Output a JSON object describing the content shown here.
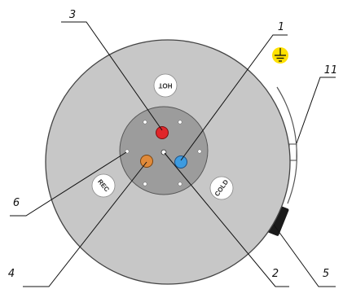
{
  "diagram": {
    "port_labels": {
      "hot": "HOT",
      "cold": "COLD",
      "rec": "REC"
    },
    "callouts": [
      {
        "id": "1",
        "text": "1",
        "refers_to": "cold-water-port (blue)"
      },
      {
        "id": "2",
        "text": "2",
        "refers_to": "center-pin"
      },
      {
        "id": "3",
        "text": "3",
        "refers_to": "hot-water-port (red)"
      },
      {
        "id": "4",
        "text": "4",
        "refers_to": "recirculation-port (orange)"
      },
      {
        "id": "5",
        "text": "5",
        "refers_to": "side-fitting"
      },
      {
        "id": "6",
        "text": "6",
        "refers_to": "mounting-hole"
      },
      {
        "id": "11",
        "text": "11",
        "refers_to": "side-tab"
      }
    ],
    "symbols": [
      {
        "name": "earth-ground-icon",
        "color": "#ffe100"
      }
    ],
    "colors": {
      "body": "#c7c7c7",
      "plate": "#9c9c9c",
      "hot_port": "#e0262a",
      "cold_port": "#3d9be0",
      "rec_port": "#e08a3a",
      "ground_badge": "#ffe100"
    }
  }
}
